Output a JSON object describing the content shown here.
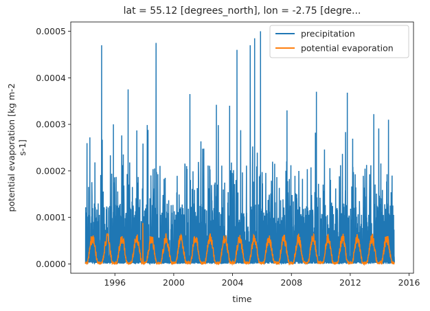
{
  "chart_data": {
    "type": "line",
    "title": "lat = 55.12 [degrees_north], lon = -2.75 [degre...",
    "xlabel": "time",
    "ylabel_lines": [
      "potential evaporation [kg m-2",
      "s-1]"
    ],
    "xlim": [
      1993.0,
      2016.3
    ],
    "ylim": [
      -2e-05,
      0.00052
    ],
    "x_ticks": [
      1996,
      2000,
      2004,
      2008,
      2012,
      2016
    ],
    "x_tick_labels": [
      "1996",
      "2000",
      "2004",
      "2008",
      "2012",
      "2016"
    ],
    "y_ticks": [
      0.0,
      0.0001,
      0.0002,
      0.0003,
      0.0004,
      0.0005
    ],
    "y_tick_labels": [
      "0.0000",
      "0.0001",
      "0.0002",
      "0.0003",
      "0.0004",
      "0.0005"
    ],
    "grid": false,
    "legend_position": "top-right",
    "series": [
      {
        "name": "precipitation",
        "color": "#1f77b4",
        "data_range": [
          1994.0,
          2015.0
        ],
        "peaks": [
          {
            "x": 1994.3,
            "y": 0.000272
          },
          {
            "x": 1995.1,
            "y": 0.00047
          },
          {
            "x": 1995.9,
            "y": 0.0003
          },
          {
            "x": 1996.9,
            "y": 0.000375
          },
          {
            "x": 1998.8,
            "y": 0.000475
          },
          {
            "x": 2001.1,
            "y": 0.000365
          },
          {
            "x": 2002.9,
            "y": 0.000342
          },
          {
            "x": 2003.8,
            "y": 0.00034
          },
          {
            "x": 2004.3,
            "y": 0.00046
          },
          {
            "x": 2005.2,
            "y": 0.00047
          },
          {
            "x": 2005.5,
            "y": 0.000485
          },
          {
            "x": 2005.9,
            "y": 0.0005
          },
          {
            "x": 2007.7,
            "y": 0.00033
          },
          {
            "x": 2009.7,
            "y": 0.00037
          },
          {
            "x": 2011.8,
            "y": 0.000368
          },
          {
            "x": 2013.6,
            "y": 0.000322
          },
          {
            "x": 2014.6,
            "y": 0.00031
          }
        ]
      },
      {
        "name": "potential evaporation",
        "color": "#ff7f0e",
        "data_range": [
          1994.0,
          2015.0
        ],
        "seasonal_peak": 5.5e-05,
        "seasonal_min": 2e-06,
        "spike": {
          "x": 1997.9,
          "y": 8.8e-05
        }
      }
    ]
  }
}
